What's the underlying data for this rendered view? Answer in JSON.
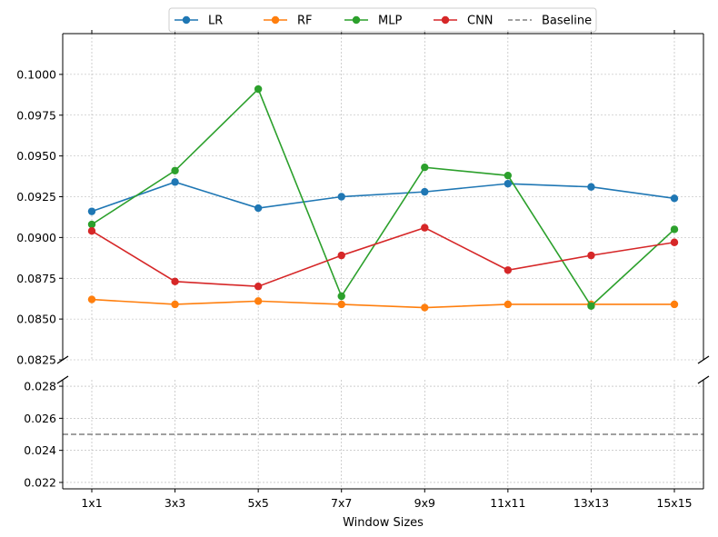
{
  "chart_data": {
    "type": "line",
    "xlabel": "Window Sizes",
    "categories": [
      "1x1",
      "3x3",
      "5x5",
      "7x7",
      "9x9",
      "11x11",
      "13x13",
      "15x15"
    ],
    "series": [
      {
        "name": "LR",
        "color": "#1f77b4",
        "values": [
          0.0916,
          0.0934,
          0.0918,
          0.0925,
          0.0928,
          0.0933,
          0.0931,
          0.0924
        ]
      },
      {
        "name": "RF",
        "color": "#ff7f0e",
        "values": [
          0.0862,
          0.0859,
          0.0861,
          0.0859,
          0.0857,
          0.0859,
          0.0859,
          0.0859
        ]
      },
      {
        "name": "MLP",
        "color": "#2ca02c",
        "values": [
          0.0908,
          0.0941,
          0.0991,
          0.0864,
          0.0943,
          0.0938,
          0.0858,
          0.0905
        ]
      },
      {
        "name": "CNN",
        "color": "#d62728",
        "values": [
          0.0904,
          0.0873,
          0.087,
          0.0889,
          0.0906,
          0.088,
          0.0889,
          0.0897
        ]
      }
    ],
    "baseline": {
      "name": "Baseline",
      "color": "#808080",
      "value": 0.025
    },
    "top_panel": {
      "ylim": [
        0.0825,
        0.1025
      ],
      "ticks": [
        "0.0825",
        "0.0850",
        "0.0875",
        "0.0900",
        "0.0925",
        "0.0950",
        "0.0975",
        "0.1000"
      ]
    },
    "bottom_panel": {
      "ylim": [
        0.0216,
        0.0284
      ],
      "ticks": [
        "0.022",
        "0.024",
        "0.026",
        "0.028"
      ]
    },
    "grid": true,
    "broken_axis": true,
    "legend": {
      "placement": "top-center",
      "columns": 5
    }
  }
}
